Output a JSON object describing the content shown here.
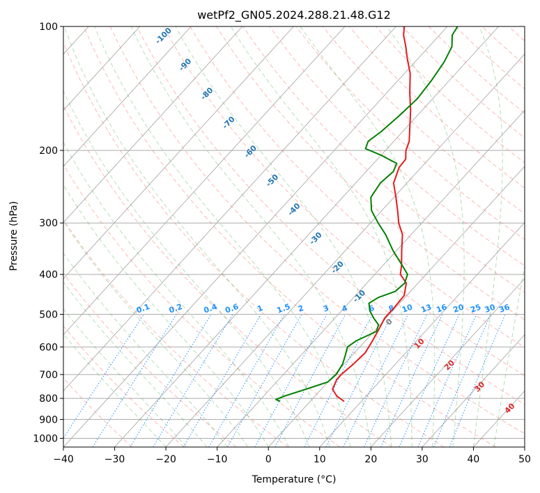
{
  "chart_data": {
    "type": "line",
    "title": "wetPf2_GN05.2024.288.21.48.G12",
    "xlabel": "Temperature (°C)",
    "ylabel": "Pressure (hPa)",
    "xlim": [
      -40,
      50
    ],
    "ylim": [
      1050,
      100
    ],
    "y_scale": "log",
    "grid": true,
    "x_ticks": [
      "−40",
      "−30",
      "−20",
      "−10",
      "0",
      "10",
      "20",
      "30",
      "40",
      "50"
    ],
    "y_ticks": [
      "100",
      "200",
      "300",
      "400",
      "500",
      "600",
      "700",
      "800",
      "900",
      "1000"
    ],
    "colors": {
      "temperature": "#e41a1c",
      "dewpoint": "#008000",
      "isotherm": "#aaaaaa",
      "dry_adiabat": "#fa8072",
      "moist_adiabat": "#2ca02c",
      "mixing_ratio": "#1e90ff",
      "isotherm_label": "#1f77b4",
      "warm_isotherm_label": "#d62728",
      "zero_isotherm_label": "#808080"
    },
    "skew_isotherm_labels": [
      {
        "t": -100,
        "label": "-100"
      },
      {
        "t": -90,
        "label": "-90"
      },
      {
        "t": -80,
        "label": "-80"
      },
      {
        "t": -70,
        "label": "-70"
      },
      {
        "t": -60,
        "label": "-60"
      },
      {
        "t": -50,
        "label": "-50"
      },
      {
        "t": -40,
        "label": "-40"
      },
      {
        "t": -30,
        "label": "-30"
      },
      {
        "t": -20,
        "label": "-20"
      },
      {
        "t": -10,
        "label": "-10"
      },
      {
        "t": 0,
        "label": "0"
      },
      {
        "t": 10,
        "label": "10"
      },
      {
        "t": 20,
        "label": "20"
      },
      {
        "t": 30,
        "label": "30"
      },
      {
        "t": 40,
        "label": "40"
      }
    ],
    "mixing_ratio_labels": [
      "0.1",
      "0.2",
      "0.4",
      "0.6",
      "1",
      "1.5",
      "2",
      "3",
      "4",
      "6",
      "8",
      "10",
      "13",
      "16",
      "20",
      "25",
      "30",
      "36"
    ],
    "series": [
      {
        "id": "temperature",
        "values": [
          [
            812,
            6.5
          ],
          [
            790,
            4.3
          ],
          [
            760,
            2.2
          ],
          [
            720,
            1.3
          ],
          [
            700,
            1.3
          ],
          [
            660,
            1.8
          ],
          [
            620,
            2.1
          ],
          [
            580,
            1.4
          ],
          [
            540,
            0.5
          ],
          [
            510,
            -0.3
          ],
          [
            480,
            -0.3
          ],
          [
            450,
            -0.5
          ],
          [
            420,
            -2.3
          ],
          [
            400,
            -5.0
          ],
          [
            380,
            -6.4
          ],
          [
            350,
            -9.0
          ],
          [
            320,
            -11.7
          ],
          [
            300,
            -14.5
          ],
          [
            280,
            -16.9
          ],
          [
            260,
            -19.6
          ],
          [
            240,
            -22.6
          ],
          [
            220,
            -24.3
          ],
          [
            210,
            -24.5
          ],
          [
            200,
            -26.0
          ],
          [
            190,
            -27.0
          ],
          [
            175,
            -29.5
          ],
          [
            160,
            -32.2
          ],
          [
            145,
            -35.5
          ],
          [
            130,
            -38.9
          ],
          [
            120,
            -42.0
          ],
          [
            112,
            -44.5
          ],
          [
            105,
            -47.0
          ],
          [
            100,
            -48.4
          ]
        ]
      },
      {
        "id": "dewpoint",
        "values": [
          [
            812,
            -6.0
          ],
          [
            805,
            -7.0
          ],
          [
            790,
            -6.0
          ],
          [
            760,
            -3.0
          ],
          [
            730,
            0.0
          ],
          [
            700,
            0.3
          ],
          [
            660,
            -0.3
          ],
          [
            630,
            -1.3
          ],
          [
            600,
            -2.4
          ],
          [
            580,
            -1.8
          ],
          [
            550,
            0.5
          ],
          [
            530,
            -0.3
          ],
          [
            510,
            -2.5
          ],
          [
            490,
            -4.5
          ],
          [
            470,
            -6.0
          ],
          [
            455,
            -5.2
          ],
          [
            440,
            -3.0
          ],
          [
            420,
            -2.6
          ],
          [
            400,
            -3.6
          ],
          [
            385,
            -5.6
          ],
          [
            350,
            -10.7
          ],
          [
            320,
            -15.0
          ],
          [
            300,
            -18.5
          ],
          [
            280,
            -22.0
          ],
          [
            260,
            -24.5
          ],
          [
            240,
            -25.2
          ],
          [
            225,
            -24.7
          ],
          [
            215,
            -25.5
          ],
          [
            205,
            -30.2
          ],
          [
            198,
            -34.2
          ],
          [
            190,
            -35.0
          ],
          [
            180,
            -34.2
          ],
          [
            165,
            -33.5
          ],
          [
            150,
            -33.0
          ],
          [
            135,
            -33.5
          ],
          [
            122,
            -34.3
          ],
          [
            112,
            -35.5
          ],
          [
            105,
            -37.5
          ],
          [
            100,
            -38.0
          ]
        ]
      }
    ]
  }
}
